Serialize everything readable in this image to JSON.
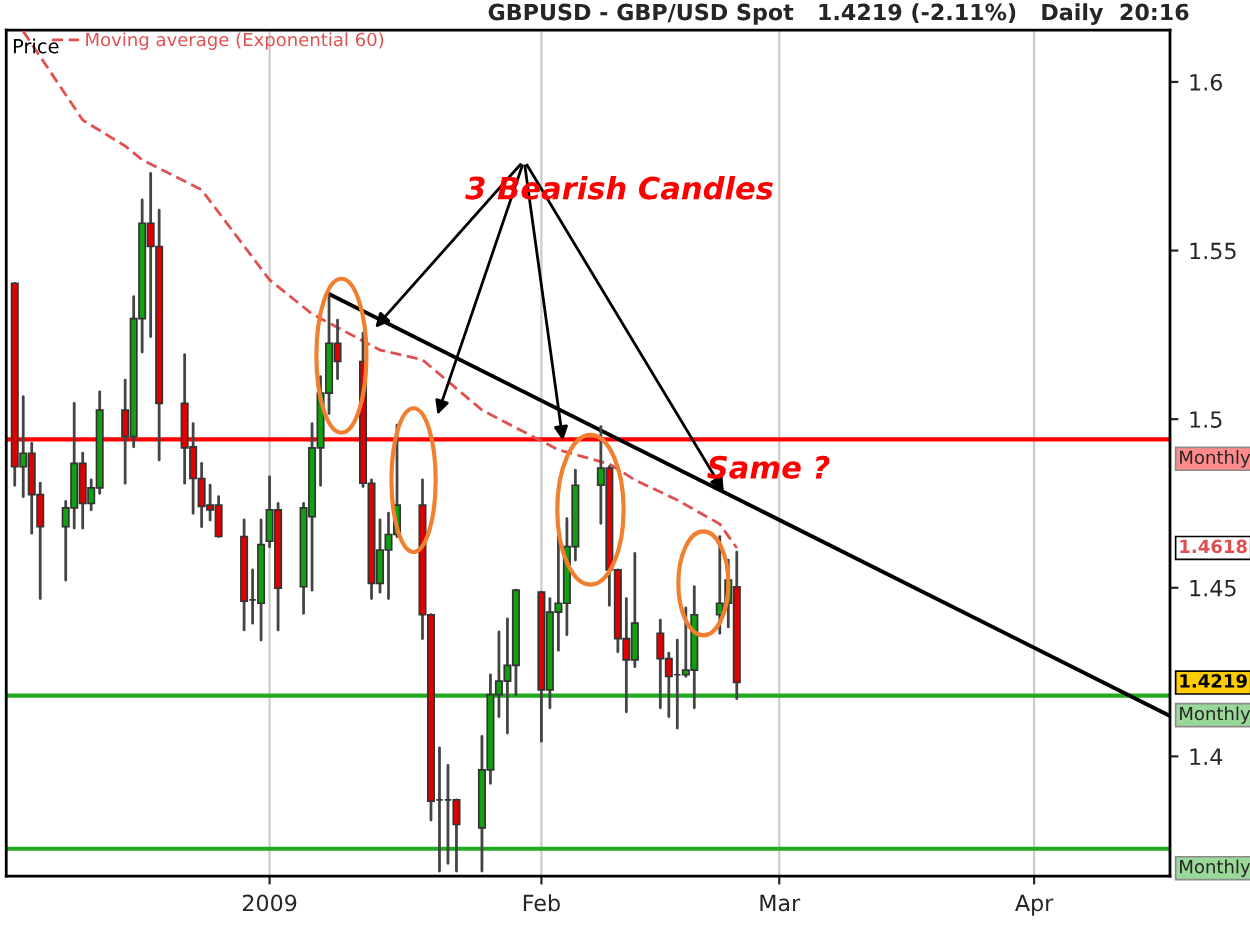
{
  "chart_data": {
    "type": "candlestick",
    "title": "GBPUSD - GBP/USD Spot   1.4219 (-2.11%)   Daily  20:16",
    "x": [
      "2008-12-02",
      "2008-12-03",
      "2008-12-04",
      "2008-12-05",
      "2008-12-08",
      "2008-12-09",
      "2008-12-10",
      "2008-12-11",
      "2008-12-12",
      "2008-12-15",
      "2008-12-16",
      "2008-12-17",
      "2008-12-18",
      "2008-12-19",
      "2008-12-22",
      "2008-12-23",
      "2008-12-24",
      "2008-12-25",
      "2008-12-26",
      "2008-12-29",
      "2008-12-30",
      "2008-12-31",
      "2009-01-01",
      "2009-01-02",
      "2009-01-05",
      "2009-01-06",
      "2009-01-07",
      "2009-01-08",
      "2009-01-09",
      "2009-01-12",
      "2009-01-13",
      "2009-01-14",
      "2009-01-15",
      "2009-01-16",
      "2009-01-19",
      "2009-01-20",
      "2009-01-21",
      "2009-01-22",
      "2009-01-23",
      "2009-01-26",
      "2009-01-27",
      "2009-01-28",
      "2009-01-29",
      "2009-01-30",
      "2009-02-02",
      "2009-02-03",
      "2009-02-04",
      "2009-02-05",
      "2009-02-06",
      "2009-02-09",
      "2009-02-10",
      "2009-02-11",
      "2009-02-12",
      "2009-02-13",
      "2009-02-16",
      "2009-02-17",
      "2009-02-18",
      "2009-02-19",
      "2009-02-20",
      "2009-02-23",
      "2009-02-24",
      "2009-02-25"
    ],
    "ohlc": [
      [
        1.5403,
        1.5403,
        1.4804,
        1.4859
      ],
      [
        1.4859,
        1.5067,
        1.477,
        1.4899
      ],
      [
        1.4899,
        1.4928,
        1.4662,
        1.4776
      ],
      [
        1.4776,
        1.481,
        1.4468,
        1.4681
      ],
      [
        1.4681,
        1.4756,
        1.4523,
        1.4737
      ],
      [
        1.4737,
        1.5047,
        1.4677,
        1.4869
      ],
      [
        1.4869,
        1.4899,
        1.4677,
        1.475
      ],
      [
        1.475,
        1.482,
        1.4731,
        1.4796
      ],
      [
        1.4796,
        1.5081,
        1.478,
        1.5027
      ],
      [
        1.5027,
        1.5116,
        1.481,
        1.4948
      ],
      [
        1.4948,
        1.5363,
        1.4918,
        1.5298
      ],
      [
        1.5298,
        1.565,
        1.5199,
        1.5581
      ],
      [
        1.5581,
        1.5729,
        1.5245,
        1.5512
      ],
      [
        1.5512,
        1.562,
        1.4879,
        1.5047
      ],
      [
        1.5047,
        1.5191,
        1.481,
        1.4915
      ],
      [
        1.4918,
        1.4987,
        1.4721,
        1.4824
      ],
      [
        1.4824,
        1.4869,
        1.4681,
        1.4741
      ],
      [
        1.4745,
        1.4804,
        1.4701,
        1.4731
      ],
      [
        1.4745,
        1.477,
        1.4652,
        1.4652
      ],
      [
        1.4652,
        1.4701,
        1.4375,
        1.446
      ],
      [
        1.4464,
        1.4553,
        1.4395,
        1.4464
      ],
      [
        1.4454,
        1.4701,
        1.4345,
        1.4628
      ],
      [
        1.4638,
        1.4829,
        1.4622,
        1.4731
      ],
      [
        1.4731,
        1.475,
        1.4375,
        1.4499
      ],
      [
        1.4503,
        1.475,
        1.4424,
        1.4737
      ],
      [
        1.4711,
        1.4987,
        1.4493,
        1.4915
      ],
      [
        1.4915,
        1.5126,
        1.4804,
        1.5077
      ],
      [
        1.5077,
        1.5369,
        1.5017,
        1.5225
      ],
      [
        1.5225,
        1.5294,
        1.512,
        1.5171
      ],
      [
        1.5171,
        1.5255,
        1.48,
        1.481
      ],
      [
        1.481,
        1.482,
        1.4468,
        1.4513
      ],
      [
        1.4513,
        1.4701,
        1.4487,
        1.4612
      ],
      [
        1.4612,
        1.4721,
        1.4468,
        1.4658
      ],
      [
        1.4658,
        1.4982,
        1.4652,
        1.4745
      ],
      [
        1.4745,
        1.482,
        1.4349,
        1.442
      ],
      [
        1.442,
        1.442,
        1.3811,
        1.3867
      ],
      [
        1.3871,
        1.4025,
        1.366,
        1.3871
      ],
      [
        1.3871,
        1.3973,
        1.3683,
        1.3871
      ],
      [
        1.3871,
        1.3871,
        1.366,
        1.3798
      ],
      [
        1.3788,
        1.4059,
        1.366,
        1.396
      ],
      [
        1.396,
        1.4242,
        1.392,
        1.4183
      ],
      [
        1.4183,
        1.4369,
        1.4118,
        1.4223
      ],
      [
        1.4223,
        1.4408,
        1.4069,
        1.427
      ],
      [
        1.427,
        1.4493,
        1.4183,
        1.4493
      ],
      [
        1.4487,
        1.4487,
        1.4045,
        1.4197
      ],
      [
        1.4197,
        1.4468,
        1.4144,
        1.4428
      ],
      [
        1.4428,
        1.4652,
        1.4315,
        1.4454
      ],
      [
        1.4454,
        1.4705,
        1.4361,
        1.4622
      ],
      [
        1.4622,
        1.4849,
        1.4582,
        1.4804
      ],
      [
        1.4804,
        1.4978,
        1.4691,
        1.4855
      ],
      [
        1.4855,
        1.4859,
        1.4448,
        1.4553
      ],
      [
        1.4553,
        1.4553,
        1.431,
        1.4349
      ],
      [
        1.4349,
        1.4468,
        1.4132,
        1.4286
      ],
      [
        1.4286,
        1.4602,
        1.4266,
        1.4395
      ],
      [
        1.4365,
        1.4404,
        1.4144,
        1.429
      ],
      [
        1.429,
        1.4306,
        1.4118,
        1.4237
      ],
      [
        1.4242,
        1.4345,
        1.4084,
        1.4242
      ],
      [
        1.4242,
        1.444,
        1.4237,
        1.4256
      ],
      [
        1.4256,
        1.4503,
        1.4144,
        1.442
      ],
      [
        1.442,
        1.4652,
        1.4365,
        1.4454
      ],
      [
        1.4454,
        1.4582,
        1.4384,
        1.4523
      ],
      [
        1.4503,
        1.4606,
        1.4171,
        1.4219
      ]
    ],
    "series": [
      {
        "type": "line",
        "name": "Moving average (Exponential 60)",
        "color": "#e05050",
        "line_style": "dashed",
        "x": [
          "2008-12-03",
          "2008-12-10",
          "2008-12-15",
          "2008-12-17",
          "2008-12-24",
          "2009-01-01",
          "2009-01-06",
          "2009-01-14",
          "2009-01-19",
          "2009-01-26",
          "2009-02-04",
          "2009-02-10",
          "2009-02-13",
          "2009-02-18",
          "2009-02-23",
          "2009-02-25"
        ],
        "values": [
          1.615,
          1.5887,
          1.581,
          1.5769,
          1.568,
          1.5413,
          1.5312,
          1.5205,
          1.5176,
          1.5027,
          1.4909,
          1.4867,
          1.482,
          1.476,
          1.4689,
          1.4618
        ]
      },
      {
        "type": "line",
        "color": "#000000",
        "line_style": "solid",
        "x": [
          "2009-01-08",
          "2009-04-17"
        ],
        "values": [
          1.5371,
          1.412
        ]
      }
    ],
    "xlim": [
      "2008-12-01",
      "2009-04-17"
    ],
    "xticks": [
      {
        "value": "2009-01-01",
        "label": "2009"
      },
      {
        "value": "2009-02-02",
        "label": "Feb"
      },
      {
        "value": "2009-03-02",
        "label": "Mar"
      },
      {
        "value": "2009-04-01",
        "label": "Apr"
      }
    ],
    "ylim": [
      1.3645,
      1.6154
    ],
    "yticks": [
      1.4,
      1.45,
      1.5,
      1.55,
      1.6
    ],
    "grid": "x",
    "legend": "top left",
    "ref_lines": [
      {
        "axis": "y",
        "value": 1.494,
        "label": "Monthly",
        "color": "#ff0000"
      },
      {
        "axis": "y",
        "value": 1.418,
        "label": "Monthly",
        "color": "#22aa22"
      },
      {
        "axis": "y",
        "value": 1.3726,
        "label": "Monthly",
        "color": "#22aa22"
      }
    ],
    "annotations": [
      "Price",
      {
        "text": "3 Bearish Candles",
        "x": "2009-01-13",
        "y": 1.5259
      },
      "Same ?",
      "1.4618",
      "1.4219"
    ]
  }
}
